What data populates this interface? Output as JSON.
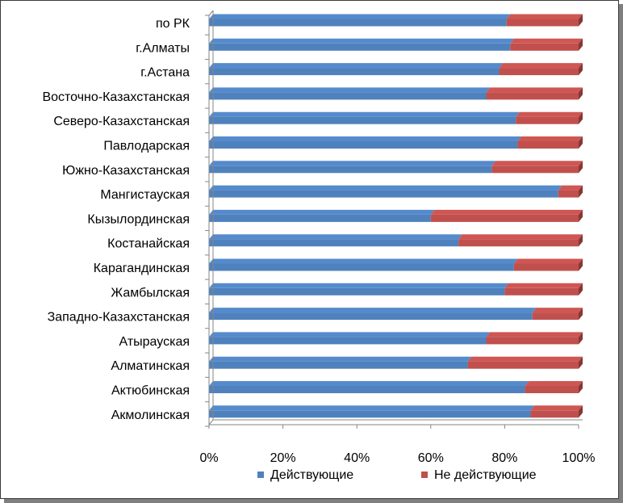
{
  "chart_data": {
    "type": "bar",
    "orientation": "horizontal",
    "stacked": "percent",
    "categories": [
      "по РК",
      "г.Алматы",
      "г.Астана",
      "Восточно-Казахстанская",
      "Северо-Казахстанская",
      "Павлодарская",
      "Южно-Казахстанская",
      "Мангистауская",
      "Кызылординская",
      "Костанайская",
      "Карагандинская",
      "Жамбылская",
      "Западно-Казахстанская",
      "Атырауская",
      "Алматинская",
      "Актюбинская",
      "Акмолинская"
    ],
    "series": [
      {
        "name": "Действующие",
        "color": "#4f81bd",
        "values": [
          80.5,
          81.5,
          78.5,
          75,
          83,
          83.5,
          76.5,
          94.5,
          60,
          67.5,
          82.5,
          80,
          87.5,
          75,
          70,
          85.5,
          87
        ]
      },
      {
        "name": "Не действующие",
        "color": "#c0504d",
        "values": [
          19.5,
          18.5,
          21.5,
          25,
          17,
          16.5,
          23.5,
          5.5,
          40,
          32.5,
          17.5,
          20,
          12.5,
          25,
          30,
          14.5,
          13
        ]
      }
    ],
    "xaxis": {
      "ticks": [
        "0%",
        "20%",
        "40%",
        "60%",
        "80%",
        "100%"
      ],
      "range": [
        0,
        100
      ]
    },
    "grid": false,
    "legend_position": "bottom"
  }
}
